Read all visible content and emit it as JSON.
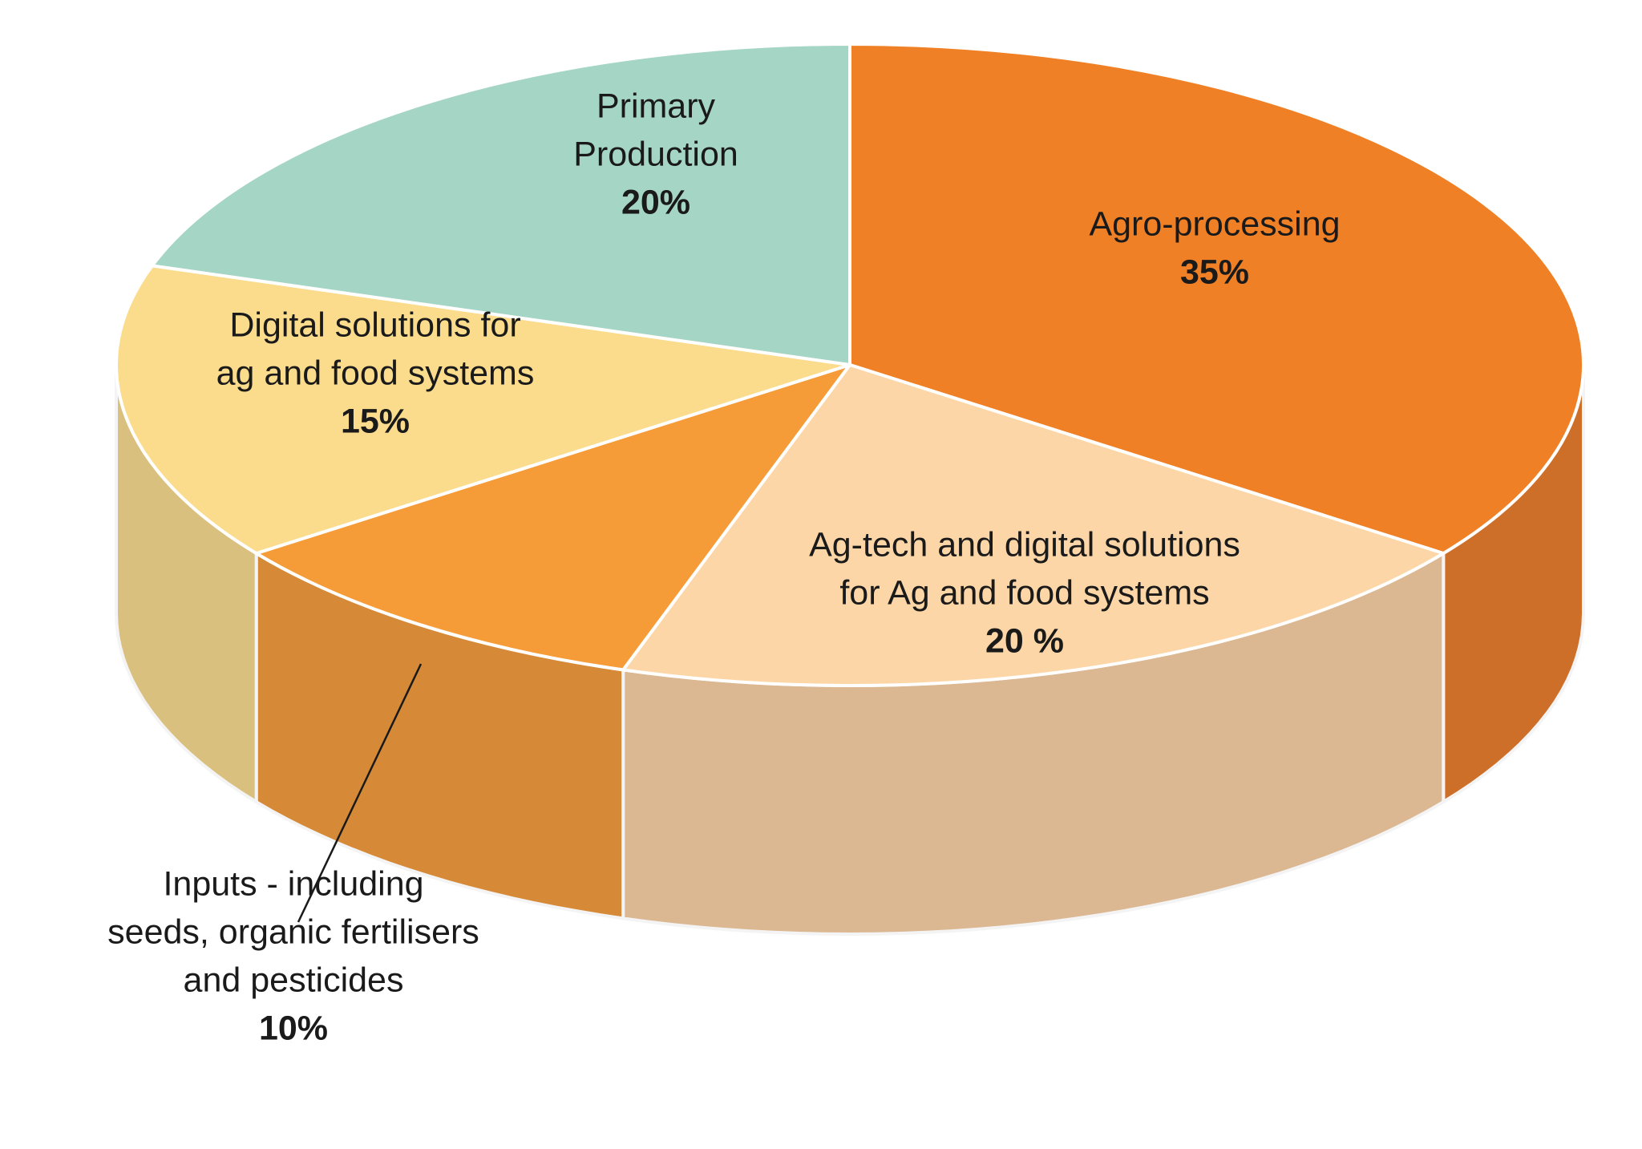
{
  "chart_data": {
    "type": "pie",
    "title": "",
    "legend": "none",
    "slices": [
      {
        "name": "Agro-processing",
        "value": 35,
        "label_lines": [
          "Agro-processing"
        ],
        "value_label": "35%",
        "top_color": "#F08026",
        "side_color": "#CE6F29"
      },
      {
        "name": "Ag-tech and digital solutions for Ag and food systems",
        "value": 20,
        "label_lines": [
          "Ag-tech and digital solutions",
          "for Ag and food systems"
        ],
        "value_label": "20 %",
        "top_color": "#FCD6A6",
        "side_color": "#DBB792"
      },
      {
        "name": "Inputs - including seeds, organic fertilisers and pesticides",
        "value": 10,
        "label_lines": [
          "Inputs - including",
          "seeds, organic fertilisers",
          "and pesticides"
        ],
        "value_label": "10%",
        "top_color": "#F59C38",
        "side_color": "#D68A38"
      },
      {
        "name": "Digital solutions for ag and food systems",
        "value": 15,
        "label_lines": [
          "Digital solutions for",
          "ag and food systems"
        ],
        "value_label": "15%",
        "top_color": "#FADC8C",
        "side_color": "#DAC07E"
      },
      {
        "name": "Primary Production",
        "value": 20,
        "label_lines": [
          "Primary",
          "Production"
        ],
        "value_label": "20%",
        "top_color": "#A5D5C5",
        "side_color": "#8FBBAE"
      }
    ]
  }
}
